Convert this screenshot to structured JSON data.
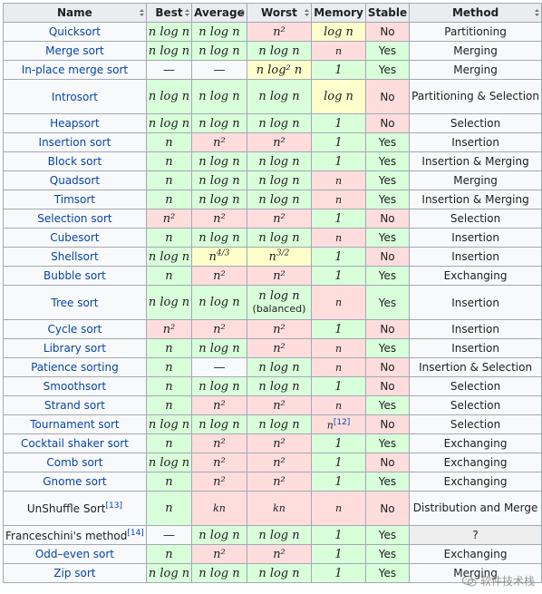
{
  "header": {
    "name": "Name",
    "best": "Best",
    "average": "Average",
    "worst": "Worst",
    "memory": "Memory",
    "stable": "Stable",
    "method": "Method"
  },
  "rows": [
    {
      "name": "Quicksort",
      "best": "n log n",
      "average": "n log n",
      "worst": "n²",
      "memory": "log n",
      "stable": "No",
      "method": "Partitioning"
    },
    {
      "name": "Merge sort",
      "best": "n log n",
      "average": "n log n",
      "worst": "n log n",
      "memory": "n",
      "stable": "Yes",
      "method": "Merging"
    },
    {
      "name": "In-place merge sort",
      "best": "—",
      "average": "—",
      "worst": "n log² n",
      "memory": "1",
      "stable": "Yes",
      "method": "Merging"
    },
    {
      "name": "Introsort",
      "best": "n log n",
      "average": "n log n",
      "worst": "n log n",
      "memory": "log n",
      "stable": "No",
      "method": "Partitioning & Selection"
    },
    {
      "name": "Heapsort",
      "best": "n log n",
      "average": "n log n",
      "worst": "n log n",
      "memory": "1",
      "stable": "No",
      "method": "Selection"
    },
    {
      "name": "Insertion sort",
      "best": "n",
      "average": "n²",
      "worst": "n²",
      "memory": "1",
      "stable": "Yes",
      "method": "Insertion"
    },
    {
      "name": "Block sort",
      "best": "n",
      "average": "n log n",
      "worst": "n log n",
      "memory": "1",
      "stable": "Yes",
      "method": "Insertion & Merging"
    },
    {
      "name": "Quadsort",
      "best": "n",
      "average": "n log n",
      "worst": "n log n",
      "memory": "n",
      "stable": "Yes",
      "method": "Merging"
    },
    {
      "name": "Timsort",
      "best": "n",
      "average": "n log n",
      "worst": "n log n",
      "memory": "n",
      "stable": "Yes",
      "method": "Insertion & Merging"
    },
    {
      "name": "Selection sort",
      "best": "n²",
      "average": "n²",
      "worst": "n²",
      "memory": "1",
      "stable": "No",
      "method": "Selection"
    },
    {
      "name": "Cubesort",
      "best": "n",
      "average": "n log n",
      "worst": "n log n",
      "memory": "n",
      "stable": "Yes",
      "method": "Insertion"
    },
    {
      "name": "Shellsort",
      "best": "n log n",
      "average": "n^4/3",
      "worst": "n^3/2",
      "memory": "1",
      "stable": "No",
      "method": "Insertion"
    },
    {
      "name": "Bubble sort",
      "best": "n",
      "average": "n²",
      "worst": "n²",
      "memory": "1",
      "stable": "Yes",
      "method": "Exchanging"
    },
    {
      "name": "Tree sort",
      "best": "n log n",
      "average": "n log n",
      "worst": "n log n",
      "worst_note": "(balanced)",
      "memory": "n",
      "stable": "Yes",
      "method": "Insertion"
    },
    {
      "name": "Cycle sort",
      "best": "n²",
      "average": "n²",
      "worst": "n²",
      "memory": "1",
      "stable": "No",
      "method": "Insertion"
    },
    {
      "name": "Library sort",
      "best": "n",
      "average": "n log n",
      "worst": "n²",
      "memory": "n",
      "stable": "Yes",
      "method": "Insertion"
    },
    {
      "name": "Patience sorting",
      "best": "n",
      "average": "—",
      "worst": "n log n",
      "memory": "n",
      "stable": "No",
      "method": "Insertion & Selection"
    },
    {
      "name": "Smoothsort",
      "best": "n",
      "average": "n log n",
      "worst": "n log n",
      "memory": "1",
      "stable": "No",
      "method": "Selection"
    },
    {
      "name": "Strand sort",
      "best": "n",
      "average": "n²",
      "worst": "n²",
      "memory": "n",
      "stable": "Yes",
      "method": "Selection"
    },
    {
      "name": "Tournament sort",
      "best": "n log n",
      "average": "n log n",
      "worst": "n log n",
      "memory": "n",
      "memory_ref": "[12]",
      "stable": "No",
      "method": "Selection"
    },
    {
      "name": "Cocktail shaker sort",
      "best": "n",
      "average": "n²",
      "worst": "n²",
      "memory": "1",
      "stable": "Yes",
      "method": "Exchanging"
    },
    {
      "name": "Comb sort",
      "best": "n log n",
      "average": "n²",
      "worst": "n²",
      "memory": "1",
      "stable": "No",
      "method": "Exchanging"
    },
    {
      "name": "Gnome sort",
      "best": "n",
      "average": "n²",
      "worst": "n²",
      "memory": "1",
      "stable": "Yes",
      "method": "Exchanging"
    },
    {
      "name": "UnShuffle Sort",
      "name_ref": "[13]",
      "best": "n",
      "average": "kn",
      "worst": "kn",
      "memory": "n",
      "stable": "No",
      "method": "Distribution and Merge"
    },
    {
      "name": "Franceschini's method",
      "name_ref": "[14]",
      "best": "—",
      "average": "n log n",
      "worst": "n log n",
      "memory": "1",
      "stable": "Yes",
      "method": "?"
    },
    {
      "name": "Odd–even sort",
      "best": "n",
      "average": "n²",
      "worst": "n²",
      "memory": "1",
      "stable": "Yes",
      "method": "Exchanging"
    },
    {
      "name": "Zip sort",
      "best": "n log n",
      "average": "n log n",
      "worst": "n log n",
      "memory": "1",
      "stable": "Yes",
      "method": "Merging"
    }
  ],
  "watermark": {
    "text": "软件技术栈",
    "icon": "wechat-icon"
  },
  "colors": {
    "good": "#d9ffda",
    "mid": "#ffffcc",
    "bad": "#ffdddd",
    "neutral": "#f8f9fa",
    "header": "#eaecf0",
    "link": "#0645ad"
  }
}
